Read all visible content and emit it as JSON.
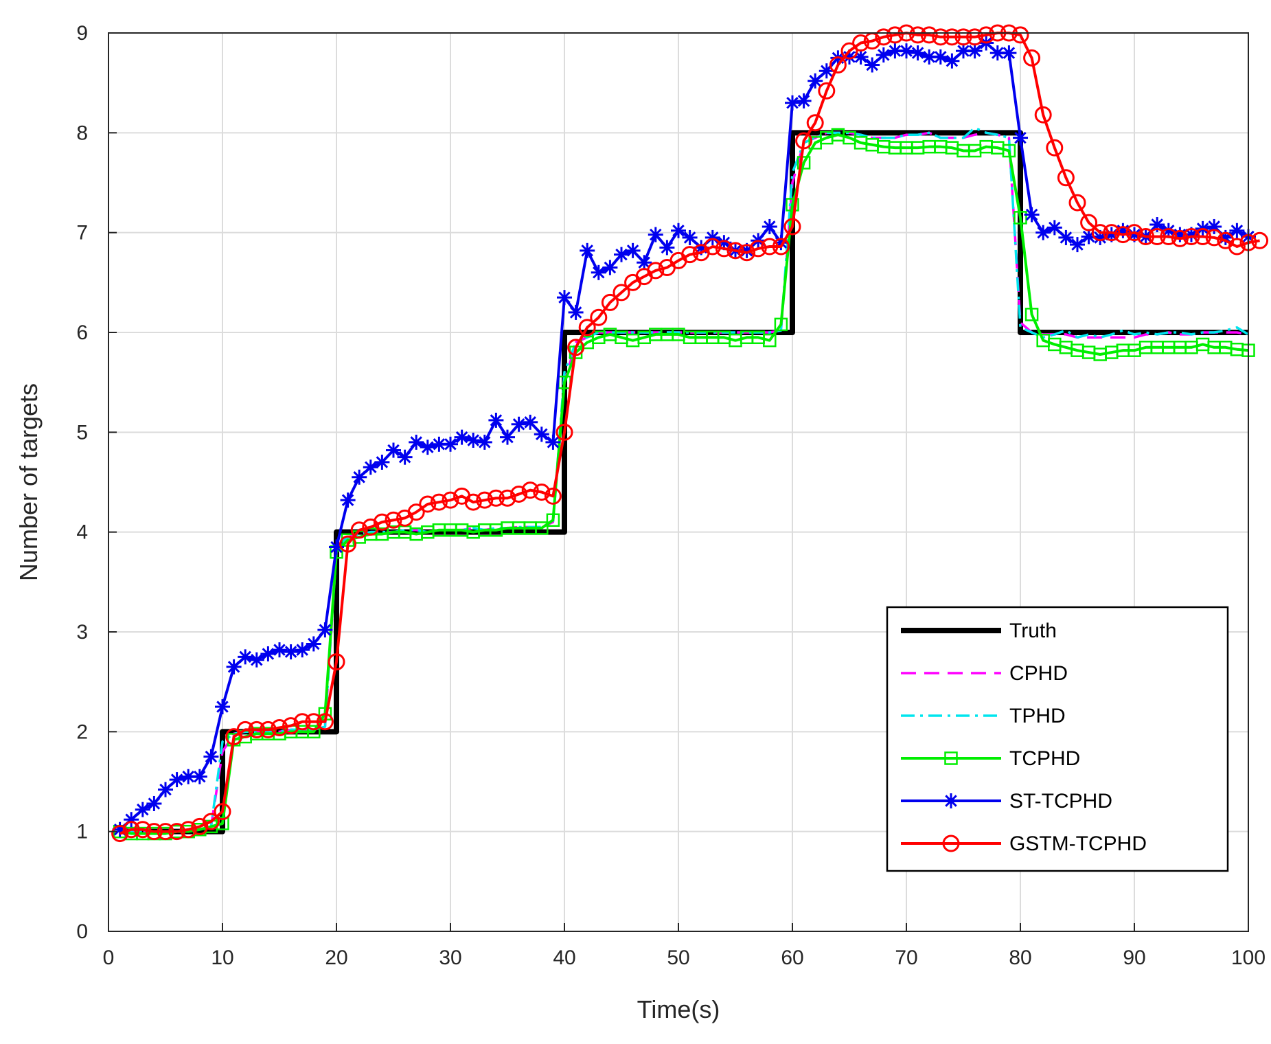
{
  "chart_data": {
    "type": "line",
    "xlabel": "Time(s)",
    "ylabel": "Number of targets",
    "xlim": [
      0,
      100
    ],
    "ylim": [
      0,
      9
    ],
    "xticks": [
      "0",
      "10",
      "20",
      "30",
      "40",
      "50",
      "60",
      "70",
      "80",
      "90",
      "100"
    ],
    "yticks": [
      "0",
      "1",
      "2",
      "3",
      "4",
      "5",
      "6",
      "7",
      "8",
      "9"
    ],
    "grid": true,
    "legend_position": "bottom-right",
    "series": [
      {
        "name": "Truth",
        "color": "#000000",
        "style": "solid-thick",
        "marker": "none",
        "values": [
          1,
          1,
          1,
          1,
          1,
          1,
          1,
          1,
          1,
          2,
          2,
          2,
          2,
          2,
          2,
          2,
          2,
          2,
          2,
          4,
          4,
          4,
          4,
          4,
          4,
          4,
          4,
          4,
          4,
          4,
          4,
          4,
          4,
          4,
          4,
          4,
          4,
          4,
          4,
          6,
          6,
          6,
          6,
          6,
          6,
          6,
          6,
          6,
          6,
          6,
          6,
          6,
          6,
          6,
          6,
          6,
          6,
          6,
          6,
          8,
          8,
          8,
          8,
          8,
          8,
          8,
          8,
          8,
          8,
          8,
          8,
          8,
          8,
          8,
          8,
          8,
          8,
          8,
          8,
          6,
          6,
          6,
          6,
          6,
          6,
          6,
          6,
          6,
          6,
          6,
          6,
          6,
          6,
          6,
          6,
          6,
          6,
          6,
          6,
          6
        ]
      },
      {
        "name": "CPHD",
        "color": "#ff00ff",
        "style": "dashed",
        "marker": "none",
        "values": [
          1,
          1,
          1,
          1,
          1,
          1,
          1,
          1.02,
          1.05,
          1.8,
          1.98,
          2,
          2,
          2,
          2,
          2.02,
          2.02,
          2.02,
          2.05,
          3.8,
          3.95,
          3.98,
          4,
          4,
          4,
          4.02,
          4.02,
          4,
          4.02,
          4.02,
          4.02,
          4.04,
          4.02,
          4.04,
          4.04,
          4.05,
          4.05,
          4.05,
          4.1,
          5.5,
          5.9,
          5.95,
          6,
          6,
          6,
          6,
          6,
          6,
          6,
          6,
          6,
          6,
          6,
          6,
          6,
          6,
          6,
          6,
          6.02,
          7.5,
          7.9,
          7.95,
          8,
          8,
          8,
          7.98,
          7.95,
          7.95,
          7.95,
          7.98,
          7.98,
          8,
          7.95,
          7.95,
          7.95,
          7.98,
          8,
          7.98,
          7.95,
          6.1,
          6,
          5.98,
          5.98,
          5.98,
          5.95,
          5.95,
          5.95,
          5.95,
          5.95,
          5.95,
          5.98,
          5.98,
          6,
          5.98,
          5.98,
          6,
          6,
          6,
          6,
          5.98
        ]
      },
      {
        "name": "TPHD",
        "color": "#00e5ee",
        "style": "dashdot",
        "marker": "none",
        "values": [
          1,
          1,
          1,
          1,
          1,
          1,
          1,
          1.02,
          1.05,
          1.9,
          1.98,
          2,
          2,
          2,
          2,
          2.02,
          2.02,
          2.02,
          2.05,
          3.85,
          3.95,
          3.98,
          4,
          4,
          4,
          4.02,
          4.02,
          4,
          4.02,
          4.02,
          4.02,
          4.04,
          4.02,
          4.04,
          4.04,
          4.05,
          4.05,
          4.05,
          4.1,
          5.6,
          5.9,
          5.95,
          6,
          6,
          6,
          6,
          6,
          6,
          6,
          6,
          6,
          6,
          6,
          6,
          6,
          6,
          6,
          6,
          6.02,
          7.6,
          7.9,
          7.95,
          8,
          8,
          8,
          7.98,
          7.95,
          7.95,
          7.95,
          7.98,
          7.98,
          8,
          7.95,
          7.95,
          7.95,
          8.05,
          8,
          7.98,
          7.95,
          6.05,
          6,
          5.95,
          5.98,
          6.02,
          5.95,
          5.98,
          5.95,
          5.98,
          6.02,
          5.98,
          6,
          5.98,
          6,
          6,
          5.98,
          6,
          6,
          6.02,
          6.05,
          5.98
        ]
      },
      {
        "name": "TCPHD",
        "color": "#00ee00",
        "style": "solid",
        "marker": "square",
        "values": [
          1,
          0.98,
          0.98,
          0.98,
          0.98,
          1,
          1,
          1.02,
          1.05,
          1.08,
          1.92,
          1.95,
          1.98,
          1.98,
          1.98,
          2,
          2,
          2,
          2.18,
          3.8,
          3.92,
          3.95,
          3.98,
          3.98,
          4,
          4,
          3.98,
          4,
          4.02,
          4.02,
          4.02,
          4,
          4.02,
          4.02,
          4.04,
          4.04,
          4.04,
          4.04,
          4.12,
          5.5,
          5.8,
          5.9,
          5.95,
          5.98,
          5.95,
          5.92,
          5.95,
          5.98,
          5.98,
          5.98,
          5.95,
          5.95,
          5.95,
          5.95,
          5.92,
          5.95,
          5.95,
          5.92,
          6.08,
          7.28,
          7.7,
          7.9,
          7.95,
          7.98,
          7.95,
          7.9,
          7.88,
          7.86,
          7.85,
          7.85,
          7.85,
          7.86,
          7.86,
          7.85,
          7.82,
          7.82,
          7.86,
          7.85,
          7.82,
          7.15,
          6.18,
          5.92,
          5.88,
          5.85,
          5.82,
          5.8,
          5.78,
          5.8,
          5.82,
          5.82,
          5.85,
          5.85,
          5.85,
          5.85,
          5.85,
          5.88,
          5.85,
          5.85,
          5.83,
          5.82
        ]
      },
      {
        "name": "ST-TCPHD",
        "color": "#0000ee",
        "style": "solid",
        "marker": "asterisk",
        "values": [
          1.02,
          1.12,
          1.22,
          1.28,
          1.42,
          1.52,
          1.55,
          1.55,
          1.75,
          2.25,
          2.65,
          2.75,
          2.72,
          2.78,
          2.82,
          2.8,
          2.82,
          2.88,
          3.02,
          3.85,
          4.32,
          4.55,
          4.65,
          4.7,
          4.82,
          4.75,
          4.9,
          4.85,
          4.88,
          4.88,
          4.95,
          4.92,
          4.9,
          5.12,
          4.95,
          5.08,
          5.1,
          4.98,
          4.9,
          6.35,
          6.2,
          6.82,
          6.6,
          6.65,
          6.78,
          6.82,
          6.7,
          6.98,
          6.85,
          7.02,
          6.95,
          6.85,
          6.95,
          6.9,
          6.82,
          6.82,
          6.92,
          7.06,
          6.9,
          8.3,
          8.32,
          8.52,
          8.62,
          8.75,
          8.76,
          8.76,
          8.68,
          8.78,
          8.82,
          8.82,
          8.8,
          8.76,
          8.76,
          8.72,
          8.82,
          8.82,
          8.9,
          8.8,
          8.8,
          7.95,
          7.18,
          7,
          7.05,
          6.95,
          6.88,
          6.96,
          6.95,
          6.98,
          7.02,
          6.98,
          6.96,
          7.08,
          7.02,
          6.98,
          6.98,
          7.04,
          7.06,
          6.95,
          7.02,
          6.96
        ]
      },
      {
        "name": "GSTM-TCPHD",
        "color": "#ff0000",
        "style": "solid",
        "marker": "circle",
        "values": [
          0.98,
          1.02,
          1.02,
          1.0,
          1.0,
          1.0,
          1.02,
          1.05,
          1.1,
          1.2,
          1.95,
          2.02,
          2.02,
          2.02,
          2.04,
          2.06,
          2.1,
          2.1,
          2.1,
          2.7,
          3.88,
          4.02,
          4.05,
          4.1,
          4.12,
          4.14,
          4.2,
          4.28,
          4.3,
          4.32,
          4.36,
          4.3,
          4.32,
          4.34,
          4.34,
          4.38,
          4.42,
          4.4,
          4.36,
          5.0,
          5.85,
          6.05,
          6.15,
          6.3,
          6.4,
          6.5,
          6.56,
          6.62,
          6.65,
          6.72,
          6.78,
          6.8,
          6.86,
          6.84,
          6.82,
          6.8,
          6.84,
          6.86,
          6.86,
          7.06,
          7.92,
          8.1,
          8.42,
          8.68,
          8.82,
          8.9,
          8.92,
          8.96,
          8.98,
          9.0,
          8.98,
          8.98,
          8.96,
          8.96,
          8.96,
          8.96,
          8.98,
          9.0,
          9.0,
          8.98,
          8.75,
          8.18,
          7.85,
          7.55,
          7.3,
          7.1,
          7.0,
          7.0,
          6.98,
          7.0,
          6.96,
          6.96,
          6.96,
          6.94,
          6.96,
          6.96,
          6.95,
          6.92,
          6.86,
          6.9,
          6.92
        ]
      }
    ]
  }
}
